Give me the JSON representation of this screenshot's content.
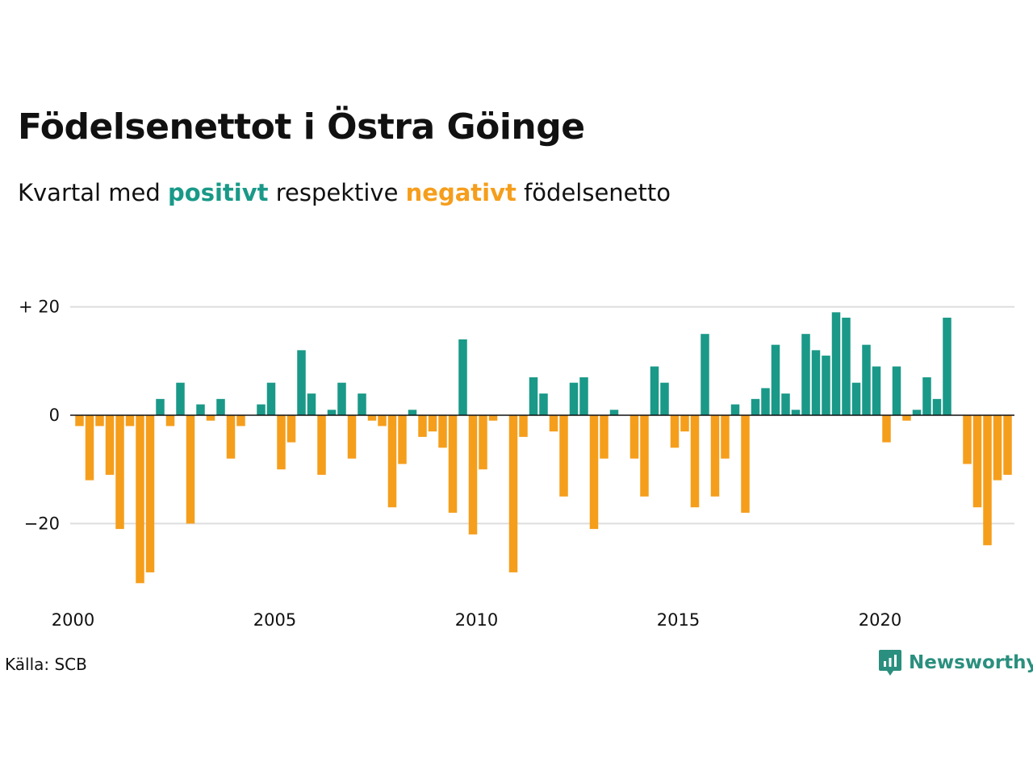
{
  "title": "Födelsenettot i Östra Göinge",
  "subtitle": {
    "prefix": "Kvartal med",
    "positive_word": "positivt",
    "middle": "respektive",
    "negative_word": "negativt",
    "suffix": "födelsenetto"
  },
  "source": "Källa: SCB",
  "brand": {
    "name": "Newsworthy",
    "icon": "newsworthy-logo-icon"
  },
  "colors": {
    "positive": "#1a9988",
    "negative": "#f59e1c",
    "grid": "#dddddd",
    "zero_line": "#111111"
  },
  "chart_data": {
    "type": "bar",
    "x_start": "2000-Q1",
    "frequency": "quarterly",
    "ylim": [
      -31,
      20
    ],
    "y_ticks": [
      {
        "value": 20,
        "label": "+ 20"
      },
      {
        "value": 0,
        "label": "0"
      },
      {
        "value": -20,
        "label": "−20"
      }
    ],
    "x_ticks": [
      {
        "year": 2000,
        "label": "2000"
      },
      {
        "year": 2005,
        "label": "2005"
      },
      {
        "year": 2010,
        "label": "2010"
      },
      {
        "year": 2015,
        "label": "2015"
      },
      {
        "year": 2020,
        "label": "2020"
      }
    ],
    "grid": true,
    "values": [
      -2,
      -12,
      -2,
      -11,
      -21,
      -2,
      -31,
      -29,
      3,
      -2,
      6,
      -20,
      2,
      -1,
      3,
      -8,
      -2,
      0,
      2,
      6,
      -10,
      -5,
      12,
      4,
      -11,
      1,
      6,
      -8,
      4,
      -1,
      -2,
      -17,
      -9,
      1,
      -4,
      -3,
      -6,
      -18,
      14,
      -22,
      -10,
      -1,
      0,
      -29,
      -4,
      7,
      4,
      -3,
      -15,
      6,
      7,
      -21,
      -8,
      1,
      0,
      -8,
      -15,
      9,
      6,
      -6,
      -3,
      -17,
      15,
      -15,
      -8,
      2,
      -18,
      3,
      5,
      13,
      4,
      1,
      15,
      12,
      11,
      19,
      18,
      6,
      13,
      9,
      -5,
      9,
      -1,
      1,
      7,
      3,
      18,
      0,
      -9,
      -17,
      -24,
      -12,
      -11
    ]
  }
}
